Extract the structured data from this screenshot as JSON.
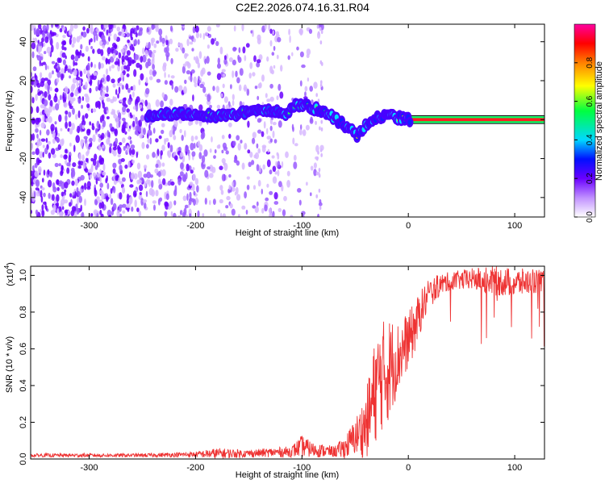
{
  "title": "C2E2.2026.074.16.31.R04",
  "chart_data": [
    {
      "type": "heatmap",
      "name": "spectrogram",
      "xlabel": "Height of straight line (km)",
      "ylabel": "Frequency (Hz)",
      "xlim": [
        -355,
        128
      ],
      "ylim": [
        -50,
        49
      ],
      "xticks": [
        -300,
        -200,
        -100,
        0,
        100
      ],
      "xtick_labels": [
        "-300",
        "-200",
        "-100",
        "0",
        "100"
      ],
      "yticks": [
        -40,
        -20,
        0,
        20,
        40
      ],
      "ytick_labels": [
        "-40",
        "-20",
        "0",
        "20",
        "40"
      ],
      "colorbar": {
        "label": "Normalized spectral amplitude",
        "range": [
          0,
          1
        ],
        "ticks": [
          0.0,
          0.2,
          0.4,
          0.6,
          0.8
        ],
        "tick_labels": [
          "0.0",
          "0.2",
          "0.4",
          "0.6",
          "0.8"
        ],
        "colors": [
          "#ffffff",
          "#c090ff",
          "#6a00ff",
          "#0010ff",
          "#00d8ff",
          "#00ff40",
          "#ffff00",
          "#ff8000",
          "#ff0000",
          "#ff00a0"
        ]
      },
      "signal_track": {
        "x": [
          -245,
          -220,
          -200,
          -180,
          -160,
          -140,
          -125,
          -115,
          -105,
          -95,
          -85,
          -75,
          -65,
          -55,
          -48,
          -40,
          -30,
          -20,
          -10,
          0,
          20,
          60,
          100,
          128
        ],
        "y": [
          2,
          3,
          3,
          2,
          3,
          5,
          4,
          3,
          8,
          7,
          5,
          3,
          -1,
          -5,
          -8,
          -3,
          1,
          3,
          1,
          0,
          0,
          0,
          0,
          0
        ]
      },
      "noise_region_x": [
        -355,
        -80
      ]
    },
    {
      "type": "line",
      "name": "snr",
      "xlabel": "Height of straight line (km)",
      "ylabel": "SNR (10 * v/v)",
      "multiplier_label": "(x10",
      "multiplier_exp": "4",
      "multiplier_close": ")",
      "xlim": [
        -355,
        128
      ],
      "ylim": [
        0,
        1.05
      ],
      "xticks": [
        -300,
        -200,
        -100,
        0,
        100
      ],
      "xtick_labels": [
        "-300",
        "-200",
        "-100",
        "0",
        "100"
      ],
      "yticks": [
        0.0,
        0.2,
        0.4,
        0.6,
        0.8,
        1.0
      ],
      "ytick_labels": [
        "0.0",
        "0.2",
        "0.4",
        "0.6",
        "0.8",
        "1.0"
      ],
      "color": "#ee3333",
      "envelope": {
        "x": [
          -355,
          -300,
          -250,
          -200,
          -180,
          -150,
          -110,
          -100,
          -90,
          -70,
          -60,
          -50,
          -40,
          -35,
          -30,
          -25,
          -20,
          -15,
          -10,
          -5,
          0,
          5,
          10,
          15,
          20,
          30,
          40,
          60,
          80,
          100,
          128
        ],
        "mean": [
          0.02,
          0.02,
          0.02,
          0.025,
          0.03,
          0.03,
          0.04,
          0.07,
          0.05,
          0.04,
          0.06,
          0.12,
          0.18,
          0.28,
          0.4,
          0.45,
          0.48,
          0.52,
          0.55,
          0.6,
          0.65,
          0.7,
          0.78,
          0.85,
          0.9,
          0.95,
          0.97,
          0.98,
          0.97,
          0.96,
          0.97
        ],
        "spread": [
          0.01,
          0.01,
          0.01,
          0.015,
          0.03,
          0.02,
          0.03,
          0.06,
          0.04,
          0.03,
          0.06,
          0.1,
          0.18,
          0.25,
          0.3,
          0.3,
          0.3,
          0.25,
          0.2,
          0.18,
          0.15,
          0.15,
          0.12,
          0.1,
          0.08,
          0.06,
          0.05,
          0.06,
          0.08,
          0.08,
          0.06
        ]
      }
    }
  ]
}
